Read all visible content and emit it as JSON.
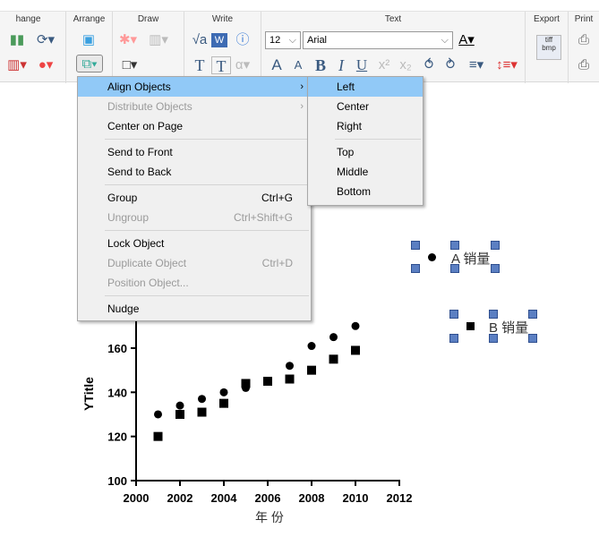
{
  "ribbon": {
    "groups": [
      {
        "label": "hange"
      },
      {
        "label": "Arrange"
      },
      {
        "label": "Draw"
      },
      {
        "label": "Write"
      },
      {
        "label": "Text"
      },
      {
        "label": "Export"
      },
      {
        "label": "Print"
      }
    ],
    "font_size": "12",
    "font_name": "Arial",
    "export_icon_text": "tiff bmp"
  },
  "context_menu": {
    "items": [
      {
        "label": "Align Objects",
        "shortcut": "",
        "submenu": true,
        "enabled": true,
        "highlighted": true
      },
      {
        "label": "Distribute Objects",
        "shortcut": "",
        "submenu": true,
        "enabled": false
      },
      {
        "label": "Center on Page",
        "shortcut": "",
        "enabled": true
      },
      {
        "label": "Send to Front",
        "shortcut": "",
        "enabled": true
      },
      {
        "label": "Send to Back",
        "shortcut": "",
        "enabled": true
      },
      {
        "label": "Group",
        "shortcut": "Ctrl+G",
        "enabled": true
      },
      {
        "label": "Ungroup",
        "shortcut": "Ctrl+Shift+G",
        "enabled": false
      },
      {
        "label": "Lock Object",
        "shortcut": "",
        "enabled": true
      },
      {
        "label": "Duplicate Object",
        "shortcut": "Ctrl+D",
        "enabled": false
      },
      {
        "label": "Position Object...",
        "shortcut": "",
        "enabled": false
      },
      {
        "label": "Nudge",
        "shortcut": "",
        "enabled": true
      }
    ]
  },
  "submenu": {
    "items": [
      {
        "label": "Left",
        "highlighted": true
      },
      {
        "label": "Center"
      },
      {
        "label": "Right"
      },
      {
        "label": "Top"
      },
      {
        "label": "Middle"
      },
      {
        "label": "Bottom"
      }
    ]
  },
  "chart_data": {
    "type": "scatter",
    "xlabel": "年 份",
    "ylabel": "YTitle",
    "xlim": [
      2000,
      2012
    ],
    "xticks": [
      "2000",
      "2002",
      "2004",
      "2006",
      "2008",
      "2010",
      "2012"
    ],
    "yticks": [
      "100",
      "120",
      "140",
      "160"
    ],
    "x": [
      2001,
      2002,
      2003,
      2004,
      2005,
      2006,
      2007,
      2008,
      2009,
      2010
    ],
    "series": [
      {
        "name": "A 销量",
        "marker": "circle",
        "values": [
          130,
          134,
          137,
          140,
          142,
          145,
          152,
          161,
          165,
          170
        ]
      },
      {
        "name": "B 销量",
        "marker": "square",
        "values": [
          120,
          130,
          131,
          135,
          144,
          145,
          146,
          150,
          155,
          159
        ]
      }
    ]
  },
  "colors": {
    "menu_highlight": "#91c9f7",
    "handle": "#5b7fc2"
  }
}
